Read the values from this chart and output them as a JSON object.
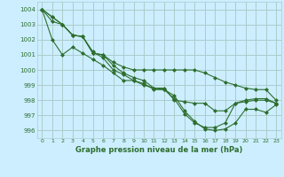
{
  "title": "Graphe pression niveau de la mer (hPa)",
  "bg_color": "#cceeff",
  "grid_color": "#aacccc",
  "line_color": "#2d6e2d",
  "xlim": [
    -0.5,
    23.5
  ],
  "ylim": [
    995.5,
    1004.5
  ],
  "yticks": [
    996,
    997,
    998,
    999,
    1000,
    1001,
    1002,
    1003,
    1004
  ],
  "xticks": [
    0,
    1,
    2,
    3,
    4,
    5,
    6,
    7,
    8,
    9,
    10,
    11,
    12,
    13,
    14,
    15,
    16,
    17,
    18,
    19,
    20,
    21,
    22,
    23
  ],
  "series": [
    [
      1004,
      1003.5,
      1003.0,
      1002.3,
      1002.2,
      1001.1,
      1001.0,
      1000.5,
      1000.2,
      1000.0,
      1000.0,
      1000.0,
      1000.0,
      1000.0,
      1000.0,
      1000.0,
      999.8,
      999.5,
      999.2,
      999.0,
      998.8,
      998.7,
      998.7,
      998.0
    ],
    [
      1004,
      1003.5,
      1003.0,
      1002.3,
      1002.2,
      1001.1,
      1001.0,
      1000.3,
      999.8,
      999.5,
      999.3,
      998.8,
      998.8,
      998.0,
      997.9,
      997.8,
      997.8,
      997.3,
      997.3,
      997.8,
      997.9,
      998.0,
      998.0,
      997.8
    ],
    [
      1004,
      1003.2,
      1003.0,
      1002.3,
      1002.2,
      1001.2,
      1000.8,
      1000.0,
      999.7,
      999.3,
      999.0,
      998.8,
      998.7,
      998.1,
      997.1,
      996.5,
      996.2,
      996.2,
      996.5,
      997.8,
      998.0,
      998.1,
      998.1,
      997.8
    ],
    [
      1004,
      1002.0,
      1001.0,
      1001.5,
      1001.1,
      1000.7,
      1000.3,
      999.8,
      999.3,
      999.3,
      999.1,
      998.7,
      998.7,
      998.3,
      997.3,
      996.6,
      996.1,
      996.0,
      996.1,
      996.5,
      997.4,
      997.4,
      997.2,
      997.7
    ]
  ]
}
